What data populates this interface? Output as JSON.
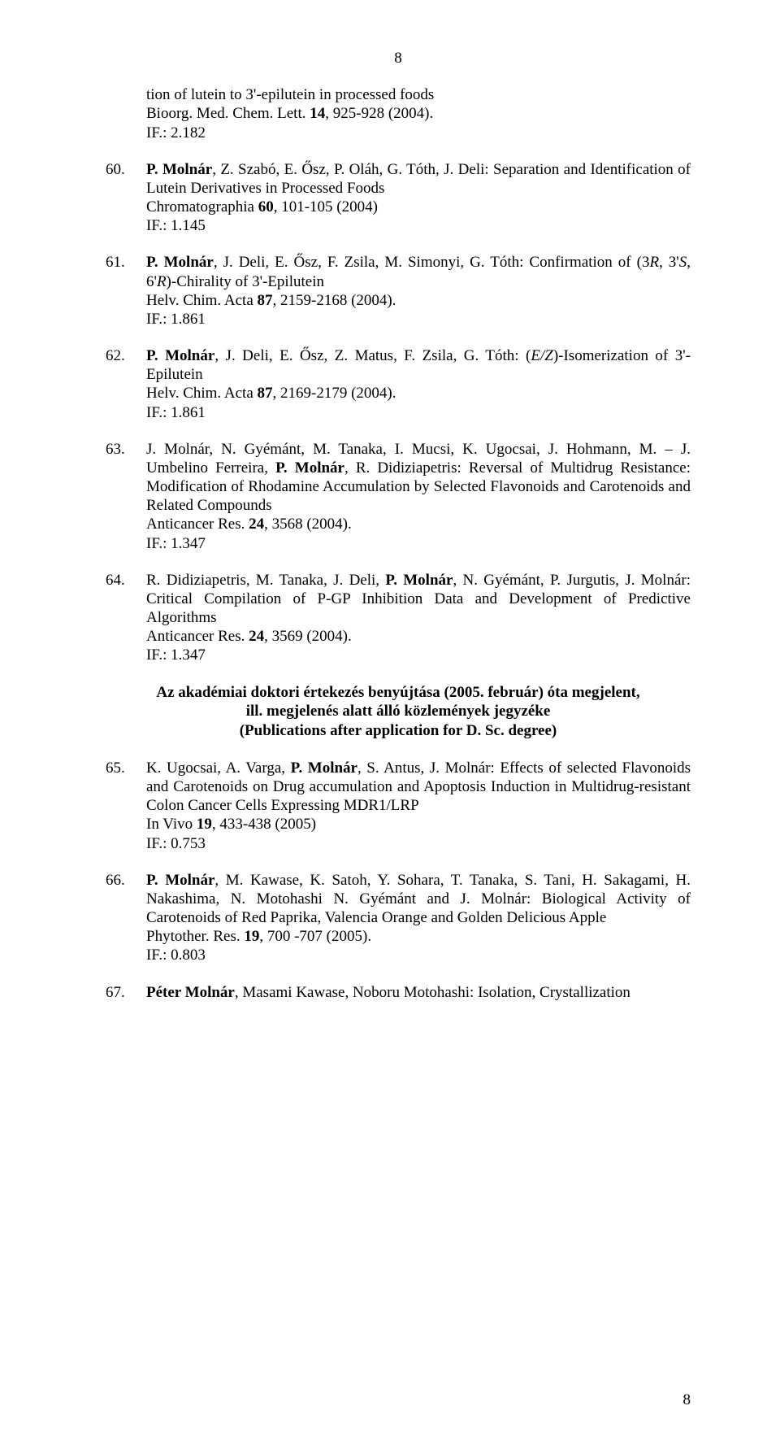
{
  "page_top": "8",
  "page_bottom": "8",
  "heading_l1": "Az akadémiai doktori értekezés benyújtása (2005. február) óta megjelent,",
  "heading_l2": "ill. megjelenés alatt álló közlemények jegyzéke",
  "heading_l3": "(Publications after application for D. Sc. degree)",
  "entries": [
    {
      "num": "",
      "pre1": "tion of lutein to 3'-epilutein in processed foods",
      "pre2a": "Bioorg. Med. Chem. Lett. ",
      "pre2b": "14",
      "pre2c": ", 925-928 (2004).",
      "if": "IF.: 2.182"
    },
    {
      "num": "60.",
      "a1": "P. Molnár",
      "a2": ", Z. Szabó, E. Ősz, P. Oláh, G. Tóth, J. Deli: Separation and Identification of Lutein Derivatives in Processed Foods",
      "j1": "Chromatographia ",
      "j2": "60",
      "j3": ", 101-105 (2004)",
      "if": "IF.: 1.145"
    },
    {
      "num": "61.",
      "a1": "P. Molnár",
      "a2a": ", J. Deli, E. Ősz, F. Zsila, M. Simonyi, G. Tóth: Confirmation of (3",
      "a2b": "R",
      "a2c": ", 3'",
      "a2d": "S",
      "a2e": ", 6'",
      "a2f": "R",
      "a2g": ")-Chirality of 3'-Epilutein",
      "j1": "Helv. Chim. Acta ",
      "j2": "87",
      "j3": ", 2159-2168 (2004).",
      "if": "IF.: 1.861"
    },
    {
      "num": "62.",
      "a1": "P. Molnár",
      "a2a": ", J. Deli, E. Ősz, Z. Matus, F. Zsila, G. Tóth: (",
      "a2b": "E/Z",
      "a2c": ")-Isomerization of 3'-Epilutein",
      "j1": "Helv. Chim. Acta ",
      "j2": "87",
      "j3": ", 2169-2179 (2004).",
      "if": "IF.: 1.861"
    },
    {
      "num": "63.",
      "a1": "J. Molnár, N. Gyémánt, M. Tanaka, I. Mucsi, K. Ugocsai, J. Hohmann, M. – J. Umbelino Ferreira, ",
      "a2": "P. Molnár",
      "a3": ", R. Didiziapetris: Reversal of Multidrug Resistance: Modification of Rhodamine Accumulation by Selected Flavonoids and Carotenoids and Related Compounds",
      "j1": "Anticancer Res. ",
      "j2": "24",
      "j3": ", 3568 (2004).",
      "if": "IF.: 1.347"
    },
    {
      "num": "64.",
      "a1": "R. Didiziapetris, M. Tanaka, J. Deli, ",
      "a2": "P. Molnár",
      "a3": ", N. Gyémánt, P. Jurgutis, J. Molnár: Critical Compilation of P-GP Inhibition Data and Development of Predictive Algorithms",
      "j1": "Anticancer Res. ",
      "j2": "24",
      "j3": ", 3569 (2004).",
      "if": "IF.: 1.347"
    },
    {
      "num": "65.",
      "a1": "K. Ugocsai, A. Varga, ",
      "a2": "P. Molnár",
      "a3": ", S. Antus, J. Molnár: Effects of selected Flavonoids and Carotenoids on Drug accumulation and Apoptosis Induction in Multidrug-resistant Colon Cancer Cells Expressing MDR1/LRP",
      "j1": "In Vivo ",
      "j2": "19",
      "j3": ", 433-438 (2005)",
      "if": "IF.: 0.753"
    },
    {
      "num": "66.",
      "a1": "P. Molnár",
      "a2": ", M. Kawase, K. Satoh, Y. Sohara, T. Tanaka, S. Tani, H. Sakagami, H. Nakashima, N. Motohashi  N. Gyémánt and J. Molnár: Biological Activity of Carotenoids of Red Paprika, Valencia Orange and Golden Delicious Apple",
      "j1": "Phytother. Res. ",
      "j2": "19",
      "j3": ", 700 -707  (2005).",
      "if": "IF.: 0.803"
    },
    {
      "num": "67.",
      "a1": "Péter Molnár",
      "a2": ", Masami Kawase, Noboru Motohashi: Isolation, Crystallization"
    }
  ]
}
